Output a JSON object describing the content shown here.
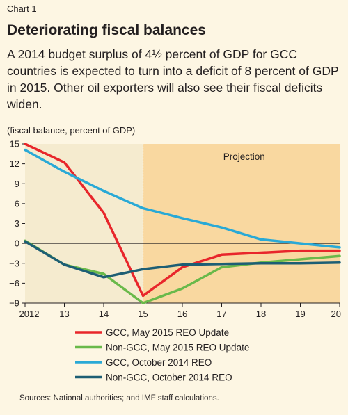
{
  "header": {
    "chart_label": "Chart 1",
    "title": "Deteriorating fiscal balances",
    "description": "A 2014 budget surplus of 4½ percent of GDP for GCC countries is expected to turn into a deficit of 8 percent of GDP in 2015. Other oil exporters will also see their fiscal deficits widen.",
    "unit_label": "(fiscal balance, percent of GDP)"
  },
  "footer": {
    "sources": "Sources: National authorities; and IMF staff calculations."
  },
  "chart_data": {
    "type": "line",
    "projection_label": "Projection",
    "projection_start": 2015,
    "shading": {
      "historical": "#f5ebcf",
      "projection": "#f9d8a0"
    },
    "x_tick_labels": [
      "2012",
      "13",
      "14",
      "15",
      "16",
      "17",
      "18",
      "19",
      "20"
    ],
    "x": [
      2012,
      2013,
      2014,
      2015,
      2016,
      2017,
      2018,
      2019,
      2020
    ],
    "xlim": [
      2012,
      2020
    ],
    "ylim": [
      -9,
      15
    ],
    "y_ticks": [
      15,
      12,
      9,
      6,
      3,
      0,
      -3,
      -6,
      -9
    ],
    "series": [
      {
        "name": "GCC, May 2015 REO Update",
        "color": "#e8262b",
        "values": [
          15,
          12.2,
          4.6,
          -7.9,
          -3.6,
          -1.7,
          -1.4,
          -1.1,
          -1.1
        ]
      },
      {
        "name": "Non-GCC, May 2015 REO Update",
        "color": "#69b94a",
        "values": [
          0.4,
          -3.2,
          -4.6,
          -9.0,
          -6.8,
          -3.6,
          -2.9,
          -2.4,
          -1.9
        ]
      },
      {
        "name": "GCC, October 2014 REO",
        "color": "#29a9d6",
        "values": [
          14.1,
          10.8,
          7.9,
          5.3,
          3.8,
          2.4,
          0.6,
          0.0,
          -0.6
        ]
      },
      {
        "name": "Non-GCC, October 2014 REO",
        "color": "#1d5e74",
        "values": [
          0.3,
          -3.2,
          -5.1,
          -3.9,
          -3.2,
          -3.1,
          -3.0,
          -3.0,
          -2.9
        ]
      }
    ]
  }
}
